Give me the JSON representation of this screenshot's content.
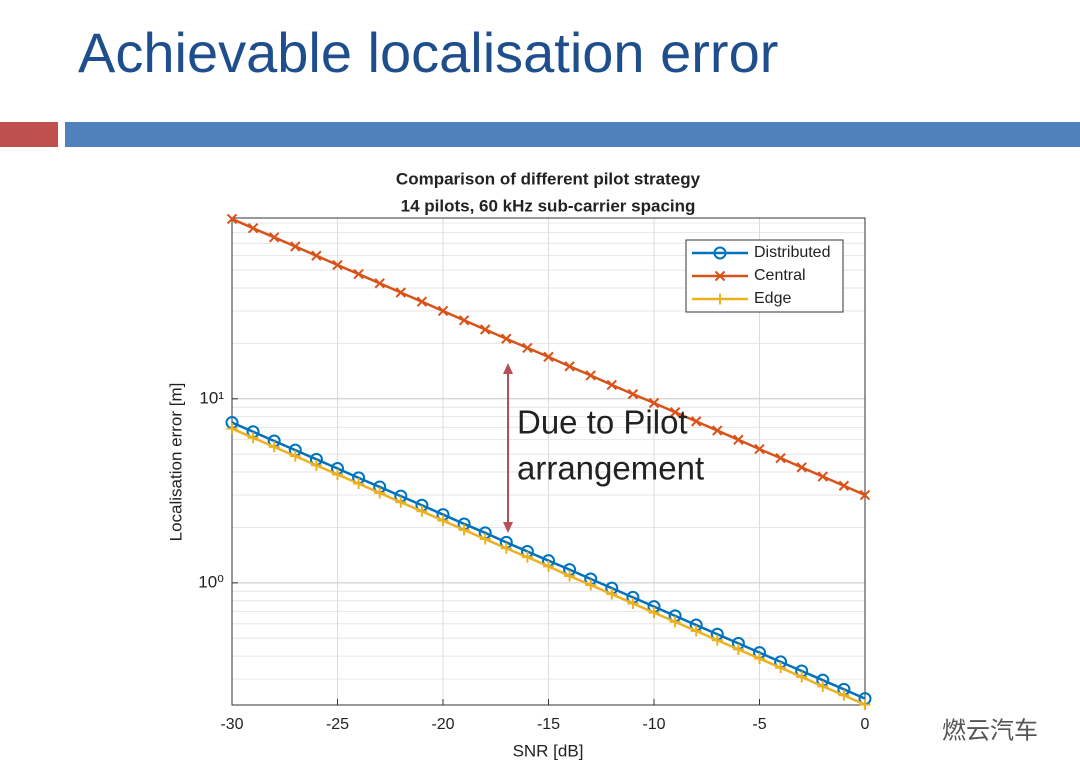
{
  "slide_title": "Achievable localisation error",
  "watermark": "燃云汽车",
  "chart_data": {
    "type": "line",
    "title": [
      "Comparison of different pilot strategy",
      "14 pilots, 60 kHz sub-carrier spacing"
    ],
    "x_label": "SNR [dB]",
    "y_label": "Localisation error [m]",
    "x": [
      -30,
      -29,
      -28,
      -27,
      -26,
      -25,
      -24,
      -23,
      -22,
      -21,
      -20,
      -19,
      -18,
      -17,
      -16,
      -15,
      -14,
      -13,
      -12,
      -11,
      -10,
      -9,
      -8,
      -7,
      -6,
      -5,
      -4,
      -3,
      -2,
      -1,
      0
    ],
    "series": [
      {
        "name": "Distributed",
        "color": "#0072bd",
        "marker": "circle",
        "values": [
          7.43,
          6.62,
          5.9,
          5.26,
          4.69,
          4.18,
          3.72,
          3.32,
          2.96,
          2.64,
          2.35,
          2.09,
          1.87,
          1.66,
          1.48,
          1.32,
          1.18,
          1.05,
          0.936,
          0.834,
          0.743,
          0.662,
          0.59,
          0.526,
          0.469,
          0.418,
          0.372,
          0.332,
          0.296,
          0.264,
          0.235
        ]
      },
      {
        "name": "Central",
        "color": "#d95319",
        "marker": "x",
        "values": [
          94.9,
          84.5,
          75.4,
          67.2,
          59.9,
          53.3,
          47.6,
          42.4,
          37.8,
          33.7,
          30.0,
          26.7,
          23.8,
          21.2,
          18.9,
          16.9,
          15.0,
          13.4,
          11.9,
          10.6,
          9.49,
          8.45,
          7.54,
          6.72,
          5.99,
          5.33,
          4.76,
          4.24,
          3.78,
          3.37,
          3.0
        ]
      },
      {
        "name": "Edge",
        "color": "#edb120",
        "marker": "plus",
        "values": [
          6.89,
          6.14,
          5.48,
          4.88,
          4.35,
          3.88,
          3.46,
          3.08,
          2.74,
          2.45,
          2.18,
          1.94,
          1.73,
          1.54,
          1.38,
          1.23,
          1.09,
          0.974,
          0.868,
          0.773,
          0.689,
          0.614,
          0.548,
          0.488,
          0.435,
          0.388,
          0.346,
          0.308,
          0.274,
          0.245,
          0.218
        ]
      }
    ],
    "xlim": [
      -30,
      0
    ],
    "xticks": [
      -30,
      -25,
      -20,
      -15,
      -10,
      -5,
      0
    ],
    "ylim": [
      0.217,
      96
    ],
    "y_scale": "log",
    "yticks": [
      {
        "value": 1,
        "label": "10⁰"
      },
      {
        "value": 10,
        "label": "10¹"
      }
    ],
    "grid": true,
    "minor_grid": true,
    "legend": "upper right",
    "annotation": {
      "lines": [
        "Due to Pilot",
        "arrangement"
      ],
      "color": "#b5505a"
    }
  }
}
